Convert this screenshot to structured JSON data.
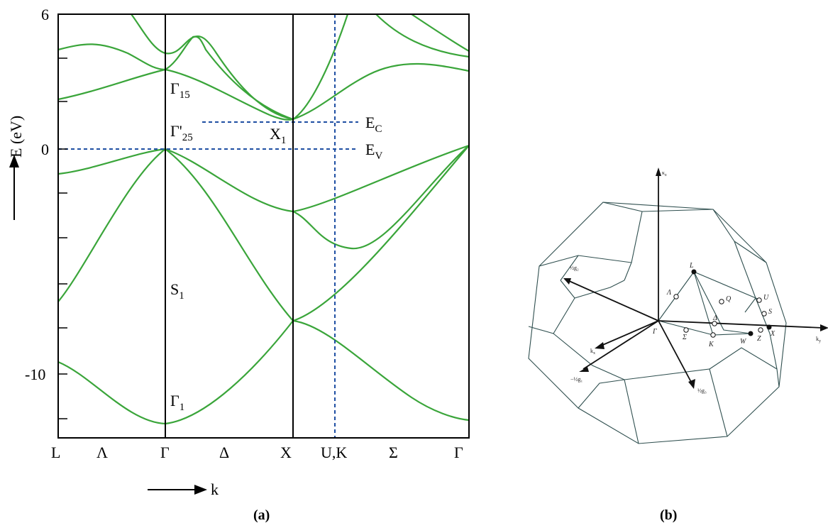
{
  "colors": {
    "band": "#3aa53a",
    "dashed": "#1f4fa3",
    "frame": "#000000",
    "bz_edge": "#2f4f4f"
  },
  "panel_a": {
    "label": "(a)",
    "y_axis_label": "E (eV)",
    "x_axis_label": "k",
    "y_ticks": [
      "6",
      "0",
      "-10"
    ],
    "k_points": [
      "L",
      "Λ",
      "Γ",
      "Δ",
      "X",
      "U,K",
      "Σ",
      "Γ"
    ],
    "annotations": {
      "gamma15": {
        "main": "Γ",
        "sub": "15"
      },
      "gamma25": {
        "main": "Γ'",
        "sub": "25"
      },
      "x1": {
        "main": "X",
        "sub": "1"
      },
      "ec": {
        "main": "E",
        "sub": "C"
      },
      "ev": {
        "main": "E",
        "sub": "V"
      },
      "s1": {
        "main": "S",
        "sub": "1"
      },
      "gamma1": {
        "main": "Γ",
        "sub": "1"
      }
    }
  },
  "panel_b": {
    "label": "(b)",
    "axes": {
      "kz": "κ",
      "kz_sub": "z",
      "ky": "k",
      "ky_sub": "y",
      "kx": "k",
      "kx_sub": "x"
    },
    "points": [
      "L",
      "Λ",
      "Q",
      "U",
      "S",
      "Δ",
      "Γ",
      "Σ",
      "K",
      "W",
      "Z",
      "X"
    ],
    "g_labels": {
      "g1": "−½g₁",
      "g2": "½g₂",
      "g3": "½g₃"
    }
  }
}
